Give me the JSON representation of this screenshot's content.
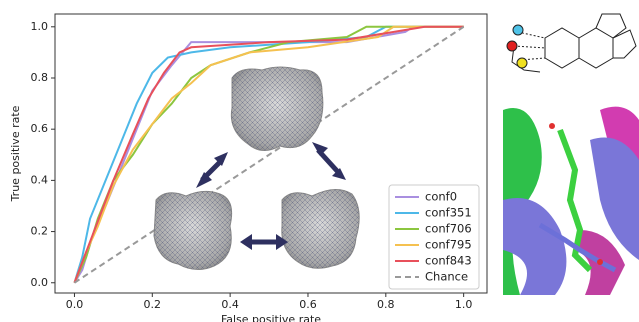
{
  "chart_data": {
    "type": "line",
    "xlabel": "False positive rate",
    "ylabel": "True positive rate",
    "xlim": [
      -0.05,
      1.06
    ],
    "ylim": [
      -0.04,
      1.05
    ],
    "xticks": [
      {
        "value": 0,
        "label": "0.0"
      },
      0.2,
      0.4,
      0.6,
      0.8,
      {
        "value": 1,
        "label": "1.0"
      }
    ],
    "yticks": [
      {
        "value": 0,
        "label": "0.0"
      },
      0.2,
      0.4,
      0.6,
      0.8,
      {
        "value": 1,
        "label": "1.0"
      }
    ],
    "legend": "lower right",
    "series": [
      {
        "name": "conf0",
        "color": "#a98fe0",
        "x": [
          0,
          0.02,
          0.05,
          0.08,
          0.12,
          0.16,
          0.2,
          0.25,
          0.3,
          0.5,
          0.7,
          0.85,
          0.87,
          1
        ],
        "values": [
          0,
          0.05,
          0.2,
          0.3,
          0.45,
          0.6,
          0.75,
          0.85,
          0.94,
          0.94,
          0.94,
          0.98,
          1,
          1
        ]
      },
      {
        "name": "conf351",
        "color": "#4db8e8",
        "x": [
          0,
          0.02,
          0.04,
          0.08,
          0.12,
          0.16,
          0.2,
          0.24,
          0.3,
          0.4,
          0.6,
          0.75,
          0.8,
          1
        ],
        "values": [
          0,
          0.1,
          0.25,
          0.4,
          0.55,
          0.7,
          0.82,
          0.88,
          0.9,
          0.92,
          0.94,
          0.96,
          1,
          1
        ]
      },
      {
        "name": "conf706",
        "color": "#8cc63f",
        "x": [
          0,
          0.03,
          0.06,
          0.1,
          0.15,
          0.2,
          0.25,
          0.3,
          0.35,
          0.45,
          0.55,
          0.7,
          0.75,
          1
        ],
        "values": [
          0,
          0.1,
          0.25,
          0.4,
          0.5,
          0.62,
          0.7,
          0.8,
          0.85,
          0.9,
          0.94,
          0.96,
          1,
          1
        ]
      },
      {
        "name": "conf795",
        "color": "#f5c150",
        "x": [
          0,
          0.03,
          0.06,
          0.1,
          0.15,
          0.2,
          0.25,
          0.3,
          0.35,
          0.45,
          0.6,
          0.78,
          0.82,
          1
        ],
        "values": [
          0,
          0.12,
          0.22,
          0.38,
          0.52,
          0.62,
          0.72,
          0.78,
          0.85,
          0.9,
          0.92,
          0.96,
          1,
          1
        ]
      },
      {
        "name": "conf843",
        "color": "#e8505b",
        "x": [
          0,
          0.02,
          0.05,
          0.1,
          0.15,
          0.19,
          0.23,
          0.27,
          0.3,
          0.5,
          0.7,
          0.9,
          1
        ],
        "values": [
          0,
          0.08,
          0.2,
          0.4,
          0.58,
          0.72,
          0.82,
          0.9,
          0.92,
          0.94,
          0.95,
          1,
          1
        ]
      },
      {
        "name": "Chance",
        "color": "#999999",
        "dashed": true,
        "x": [
          0,
          1
        ],
        "values": [
          0,
          1
        ]
      }
    ]
  }
}
